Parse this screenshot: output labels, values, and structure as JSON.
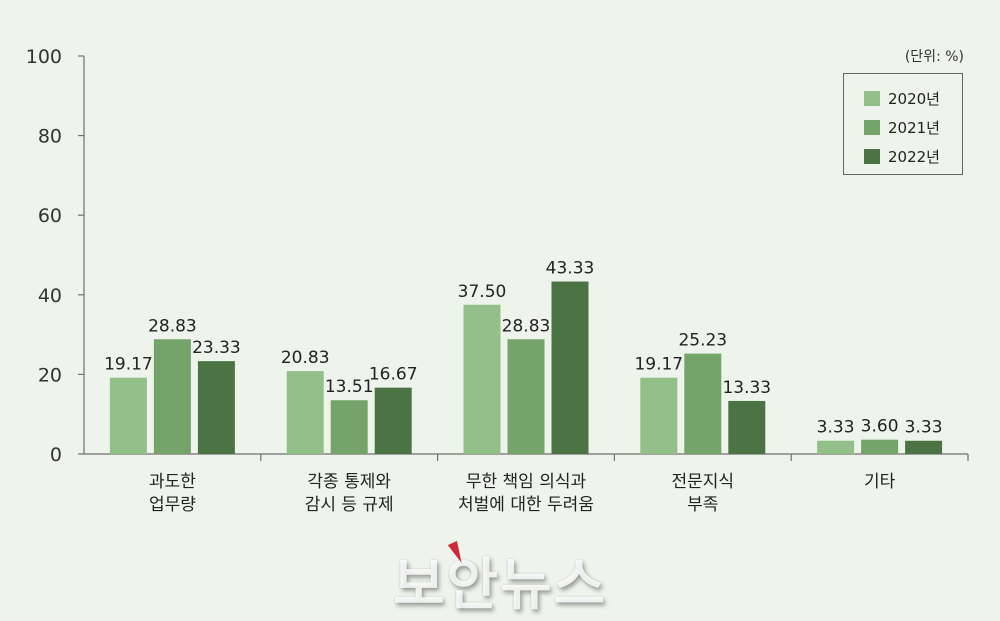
{
  "unit_note": "(단위: %)",
  "watermark": "보안뉴스",
  "colors": {
    "y2020": "#93bf89",
    "y2021": "#74a46a",
    "y2022": "#4b7344",
    "axis": "#6f6f6f",
    "text": "#222222"
  },
  "chart_data": {
    "type": "bar",
    "categories": [
      [
        "과도한",
        "업무량"
      ],
      [
        "각종 통제와",
        "감시 등 규제"
      ],
      [
        "무한 책임 의식과",
        "처벌에 대한 두려움"
      ],
      [
        "전문지식",
        "부족"
      ],
      [
        "기타"
      ]
    ],
    "series": [
      {
        "name": "2020년",
        "values": [
          19.17,
          20.83,
          37.5,
          19.17,
          3.33
        ]
      },
      {
        "name": "2021년",
        "values": [
          28.83,
          13.51,
          28.83,
          25.23,
          3.6
        ]
      },
      {
        "name": "2022년",
        "values": [
          23.33,
          16.67,
          43.33,
          13.33,
          3.33
        ]
      }
    ],
    "value_labels": [
      [
        "19.17",
        "20.83",
        "37.50",
        "19.17",
        "3.33"
      ],
      [
        "28.83",
        "13.51",
        "28.83",
        "25.23",
        "3.60"
      ],
      [
        "23.33",
        "16.67",
        "43.33",
        "13.33",
        "3.33"
      ]
    ],
    "yticks": [
      "0",
      "20",
      "40",
      "60",
      "80",
      "100"
    ],
    "ylim": [
      0,
      100
    ],
    "legend_position": "top-right",
    "grid": false
  }
}
